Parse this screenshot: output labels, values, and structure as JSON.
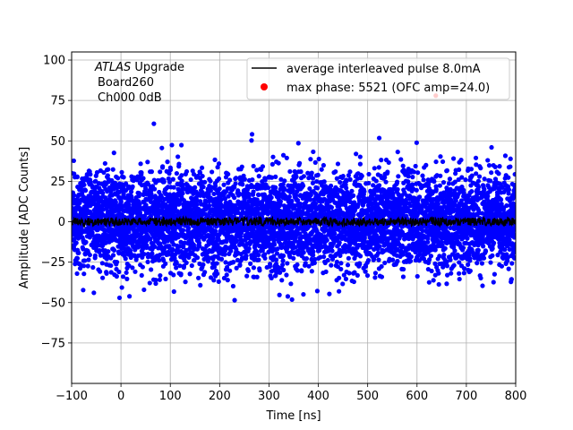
{
  "chart_data": {
    "type": "scatter",
    "xlabel": "Time [ns]",
    "ylabel": "Amplitude [ADC Counts]",
    "xlim": [
      -100,
      800
    ],
    "ylim": [
      -100,
      105
    ],
    "xticks": [
      -100,
      0,
      100,
      200,
      300,
      400,
      500,
      600,
      700,
      800
    ],
    "yticks": [
      -75,
      -50,
      -25,
      0,
      25,
      50,
      75,
      100
    ],
    "grid": true,
    "legend_position": "top-right",
    "annotation": {
      "line1_italic": "ATLAS",
      "line1_rest": " Upgrade",
      "line2": "Board260",
      "line3": "Ch000 0dB"
    },
    "series": [
      {
        "name": "average interleaved pulse 8.0mA",
        "kind": "line",
        "color": "#000000",
        "x_range": [
          -100,
          800
        ],
        "approx_level": 0,
        "noise_amplitude": 2.5
      },
      {
        "name": "max phase: 5521 (OFC amp=24.0)",
        "kind": "scatter",
        "color": "#0000ff",
        "x_range": [
          -100,
          800
        ],
        "approx_spread": 15,
        "point_count": 5600,
        "outlier_range": [
          -60,
          70
        ]
      }
    ],
    "highlight_point": {
      "color": "#ff0000",
      "x": 638,
      "y": 78
    },
    "colors": {
      "scatter": "#0000ff",
      "line": "#000000",
      "marker": "#ff0000",
      "grid": "#b0b0b0"
    }
  }
}
